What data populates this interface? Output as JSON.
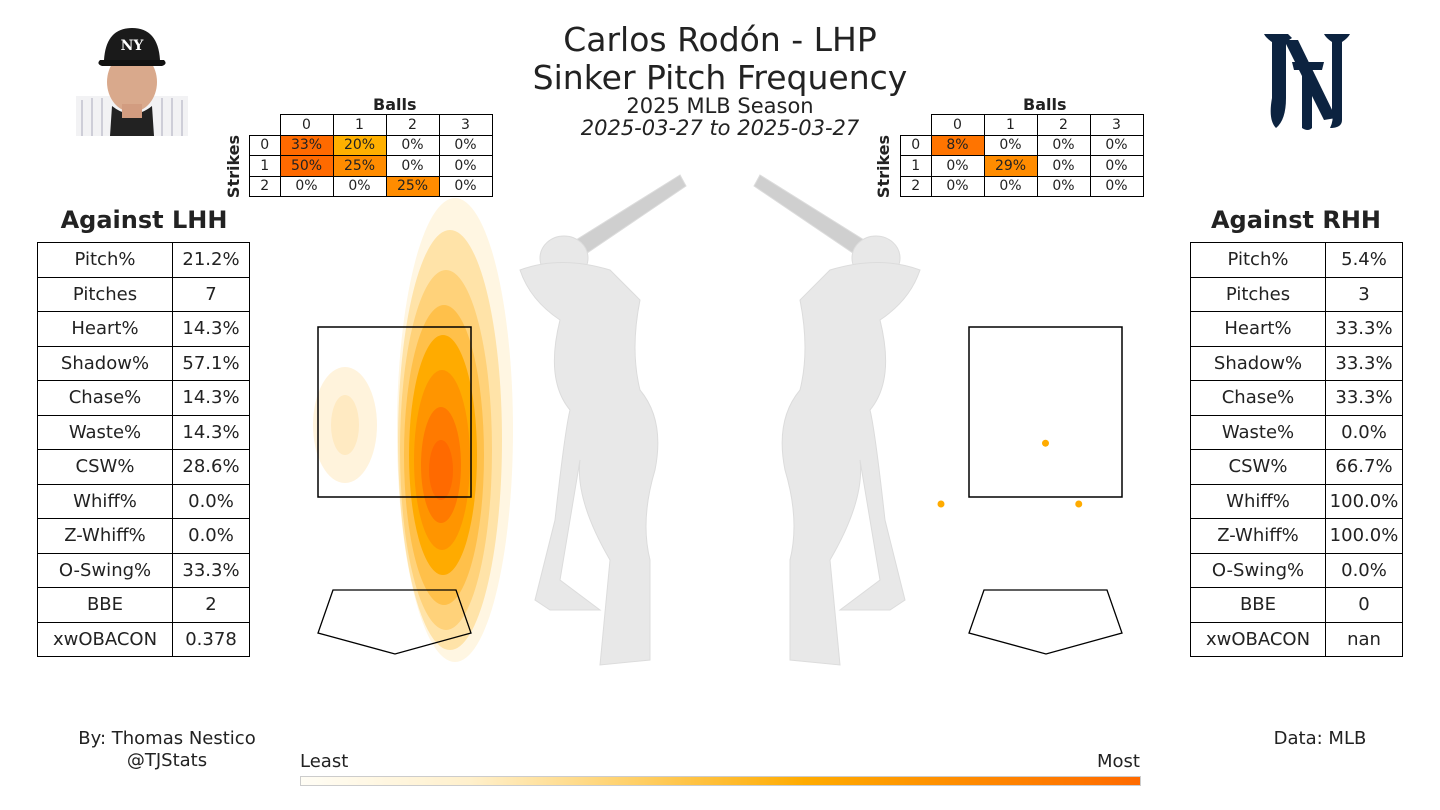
{
  "header": {
    "title_line1": "Carlos Rodón - LHP",
    "title_line2": "Sinker Pitch Frequency",
    "season": "2025 MLB Season",
    "date_range": "2025-03-27 to 2025-03-27"
  },
  "colors": {
    "least": "#fffdf5",
    "most": "#ff6a00",
    "accent": "#ffab00",
    "logo": "#0c2340"
  },
  "icons": {
    "player": "player-headshot",
    "team": "yankees-logo",
    "batter": "batter-silhouette"
  },
  "count_tables": {
    "balls_label": "Balls",
    "strikes_label": "Strikes",
    "ball_headers": [
      "0",
      "1",
      "2",
      "3"
    ],
    "strike_headers": [
      "0",
      "1",
      "2"
    ],
    "lhh": [
      [
        "33%",
        "20%",
        "0%",
        "0%"
      ],
      [
        "50%",
        "25%",
        "0%",
        "0%"
      ],
      [
        "0%",
        "0%",
        "25%",
        "0%"
      ]
    ],
    "rhh": [
      [
        "8%",
        "0%",
        "0%",
        "0%"
      ],
      [
        "0%",
        "29%",
        "0%",
        "0%"
      ],
      [
        "0%",
        "0%",
        "0%",
        "0%"
      ]
    ]
  },
  "lhh": {
    "heading": "Against LHH",
    "stats": [
      [
        "Pitch%",
        "21.2%"
      ],
      [
        "Pitches",
        "7"
      ],
      [
        "Heart%",
        "14.3%"
      ],
      [
        "Shadow%",
        "57.1%"
      ],
      [
        "Chase%",
        "14.3%"
      ],
      [
        "Waste%",
        "14.3%"
      ],
      [
        "CSW%",
        "28.6%"
      ],
      [
        "Whiff%",
        "0.0%"
      ],
      [
        "Z-Whiff%",
        "0.0%"
      ],
      [
        "O-Swing%",
        "33.3%"
      ],
      [
        "BBE",
        "2"
      ],
      [
        "xwOBACON",
        "0.378"
      ]
    ]
  },
  "rhh": {
    "heading": "Against RHH",
    "stats": [
      [
        "Pitch%",
        "5.4%"
      ],
      [
        "Pitches",
        "3"
      ],
      [
        "Heart%",
        "33.3%"
      ],
      [
        "Shadow%",
        "33.3%"
      ],
      [
        "Chase%",
        "33.3%"
      ],
      [
        "Waste%",
        "0.0%"
      ],
      [
        "CSW%",
        "66.7%"
      ],
      [
        "Whiff%",
        "100.0%"
      ],
      [
        "Z-Whiff%",
        "100.0%"
      ],
      [
        "O-Swing%",
        "0.0%"
      ],
      [
        "BBE",
        "0"
      ],
      [
        "xwOBACON",
        "nan"
      ]
    ]
  },
  "chart_data": {
    "type": "scatter",
    "rhh_points": [
      {
        "x": 0.0,
        "y": 2.3
      },
      {
        "x": -1.1,
        "y": 1.5
      },
      {
        "x": 0.35,
        "y": 1.5
      }
    ]
  },
  "legend": {
    "least": "Least",
    "most": "Most"
  },
  "footer": {
    "author": "By: Thomas Nestico",
    "handle": "@TJStats",
    "source": "Data: MLB"
  }
}
